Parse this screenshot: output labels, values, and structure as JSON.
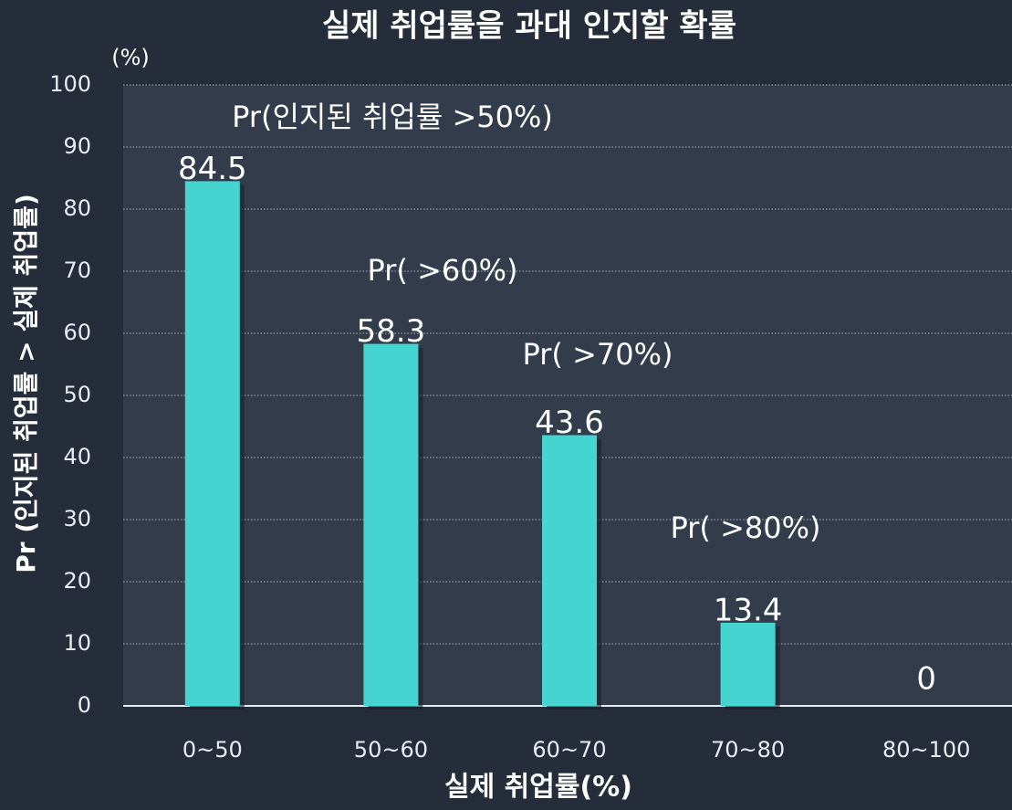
{
  "chart_data": {
    "type": "bar",
    "title": "실제 취업률을 과대 인지할 확률",
    "x_label": "실제 취업률(%)",
    "y_label": "Pr (인지된 취업률 > 실제 취업률)",
    "y_unit": "(%)",
    "categories": [
      "0~50",
      "50~60",
      "60~70",
      "70~80",
      "80~100"
    ],
    "values": [
      84.5,
      58.3,
      43.6,
      13.4,
      0
    ],
    "color": "#45d4d0",
    "annotations": [
      "Pr(인지된 취업률 >50%)",
      "Pr( >60%)",
      "Pr( >70%)",
      "Pr( >80%)"
    ],
    "ylim": [
      0,
      100
    ],
    "yticks": [
      0,
      10,
      20,
      30,
      40,
      50,
      60,
      70,
      80,
      90,
      100
    ],
    "grid": true
  }
}
